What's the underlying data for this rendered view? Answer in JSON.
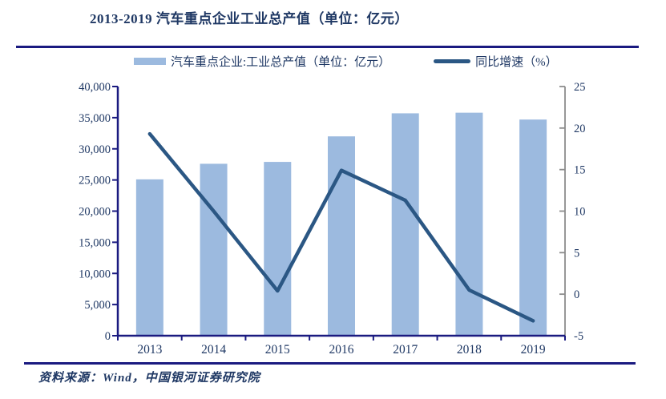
{
  "title": "2013-2019 汽车重点企业工业总产值（单位：亿元）",
  "legend": {
    "bar_label": "汽车重点企业:工业总产值（单位：亿元）",
    "line_label": "同比增速（%）"
  },
  "source": "资料来源：Wind，中国银河证券研究院",
  "colors": {
    "bar": "#9CBADF",
    "line": "#2B5784",
    "axis_navy": "#1A1A80",
    "axis_gray": "#8C8C8C",
    "text_navy": "#1F3864"
  },
  "chart_data": {
    "type": "bar+line combo",
    "categories": [
      "2013",
      "2014",
      "2015",
      "2016",
      "2017",
      "2018",
      "2019"
    ],
    "series": [
      {
        "name": "汽车重点企业:工业总产值（单位：亿元）",
        "type": "bar",
        "axis": "left",
        "color": "#9CBADF",
        "values": [
          25100,
          27600,
          27900,
          32000,
          35700,
          35800,
          34700
        ]
      },
      {
        "name": "同比增速（%）",
        "type": "line",
        "axis": "right",
        "color": "#2B5784",
        "values": [
          19.3,
          10.0,
          0.4,
          14.9,
          11.3,
          0.5,
          -3.2
        ]
      }
    ],
    "left_axis": {
      "min": 0,
      "max": 40000,
      "step": 5000,
      "tick_labels": [
        "0",
        "5,000",
        "10,000",
        "15,000",
        "20,000",
        "25,000",
        "30,000",
        "35,000",
        "40,000"
      ]
    },
    "right_axis": {
      "min": -5,
      "max": 25,
      "step": 5,
      "tick_labels": [
        "-5",
        "0",
        "5",
        "10",
        "15",
        "20",
        "25"
      ]
    },
    "grid": false,
    "legend_position": "top"
  }
}
